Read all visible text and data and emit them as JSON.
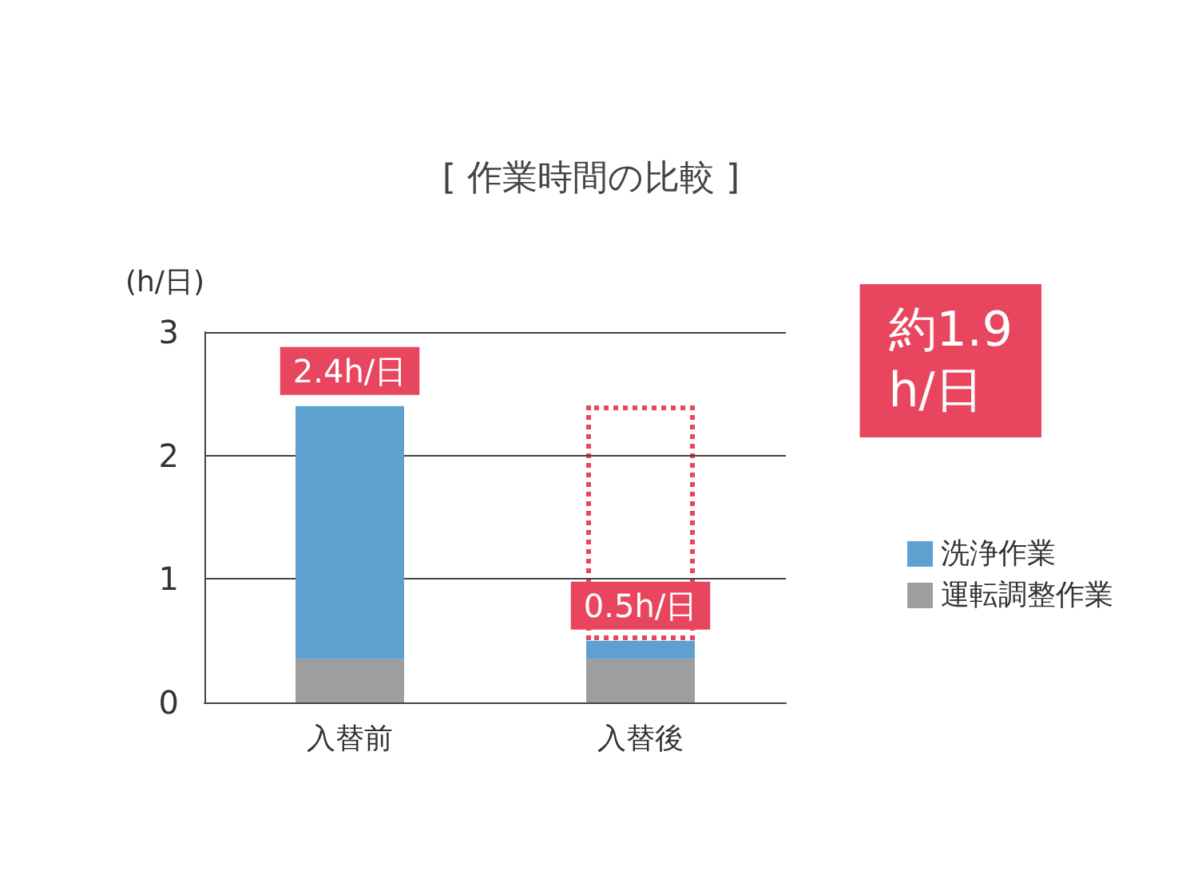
{
  "chart_data": {
    "type": "bar",
    "title": "[ 作業時間の比較 ]",
    "ylabel": "(h/日)",
    "categories": [
      "入替前",
      "入替後"
    ],
    "stacked": true,
    "series": [
      {
        "name": "運転調整作業",
        "color": "#9e9e9e",
        "values": [
          0.35,
          0.35
        ]
      },
      {
        "name": "洗浄作業",
        "color": "#5ea0d0",
        "values": [
          2.05,
          0.15
        ]
      }
    ],
    "totals": [
      "2.4h/日",
      "0.5h/日"
    ],
    "ylim": [
      0,
      3
    ],
    "yticks": [
      0,
      1,
      2,
      3
    ],
    "grid": "y",
    "legend": "right",
    "annotations": [
      "約1.9 h/日"
    ]
  }
}
